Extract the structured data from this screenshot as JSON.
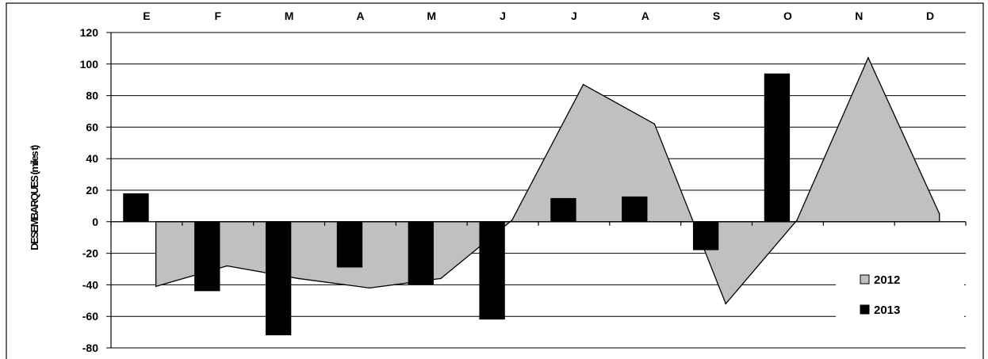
{
  "chart_data": {
    "type": "bar",
    "categories": [
      "E",
      "F",
      "M",
      "A",
      "M",
      "J",
      "J",
      "A",
      "S",
      "O",
      "N",
      "D"
    ],
    "title": "",
    "xlabel": "",
    "ylabel": "DESEMBARQUES (miles t)",
    "ylim": [
      -80,
      120
    ],
    "ytick_step": 20,
    "grid": true,
    "legend_position": "bottom-right",
    "series": [
      {
        "name": "2012",
        "kind": "area",
        "color": "#c0c0c0",
        "values": [
          -41,
          -28,
          -36,
          -42,
          -36,
          1,
          87,
          62,
          -52,
          1,
          104,
          5
        ]
      },
      {
        "name": "2013",
        "kind": "bar",
        "color": "#000000",
        "values": [
          18,
          -44,
          -72,
          -29,
          -40,
          -62,
          15,
          16,
          -18,
          94,
          null,
          null
        ]
      }
    ]
  }
}
